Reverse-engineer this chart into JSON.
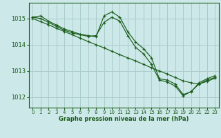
{
  "title": "Graphe pression niveau de la mer (hPa)",
  "bg_color": "#cce8e8",
  "grid_color": "#aacccc",
  "line_color": "#1a5c1a",
  "xlim": [
    -0.5,
    23.5
  ],
  "ylim": [
    1011.6,
    1015.6
  ],
  "yticks": [
    1012,
    1013,
    1014,
    1015
  ],
  "xticks": [
    0,
    1,
    2,
    3,
    4,
    5,
    6,
    7,
    8,
    9,
    10,
    11,
    12,
    13,
    14,
    15,
    16,
    17,
    18,
    19,
    20,
    21,
    22,
    23
  ],
  "series": [
    {
      "x": [
        0,
        1,
        2,
        3,
        4,
        5,
        6,
        7,
        8,
        9,
        10,
        11,
        12,
        13,
        14,
        15,
        16,
        17,
        18,
        19,
        20,
        21,
        22,
        23
      ],
      "y": [
        1015.05,
        1015.1,
        1014.9,
        1014.75,
        1014.6,
        1014.5,
        1014.4,
        1014.35,
        1014.3,
        1015.1,
        1015.25,
        1015.05,
        1014.5,
        1014.1,
        1013.85,
        1013.5,
        1012.7,
        1012.65,
        1012.5,
        1012.1,
        1012.2,
        1012.55,
        1012.7,
        1012.82
      ]
    },
    {
      "x": [
        0,
        1,
        2,
        3,
        4,
        5,
        6,
        7,
        8,
        9,
        10,
        11,
        12,
        13,
        14,
        15,
        16,
        17,
        18,
        19,
        20,
        21,
        22,
        23
      ],
      "y": [
        1015.05,
        1015.0,
        1014.85,
        1014.7,
        1014.55,
        1014.45,
        1014.38,
        1014.32,
        1014.35,
        1014.85,
        1015.05,
        1014.9,
        1014.35,
        1013.9,
        1013.65,
        1013.25,
        1012.65,
        1012.58,
        1012.42,
        1012.05,
        1012.22,
        1012.5,
        1012.65,
        1012.75
      ]
    },
    {
      "x": [
        0,
        1,
        2,
        3,
        4,
        5,
        6,
        7,
        8,
        9,
        10,
        11,
        12,
        13,
        14,
        15,
        16,
        17,
        18,
        19,
        20,
        21,
        22,
        23
      ],
      "y": [
        1015.0,
        1014.88,
        1014.76,
        1014.63,
        1014.5,
        1014.38,
        1014.25,
        1014.12,
        1014.0,
        1013.88,
        1013.75,
        1013.62,
        1013.5,
        1013.38,
        1013.25,
        1013.12,
        1013.0,
        1012.88,
        1012.75,
        1012.62,
        1012.55,
        1012.5,
        1012.6,
        1012.72
      ]
    }
  ]
}
